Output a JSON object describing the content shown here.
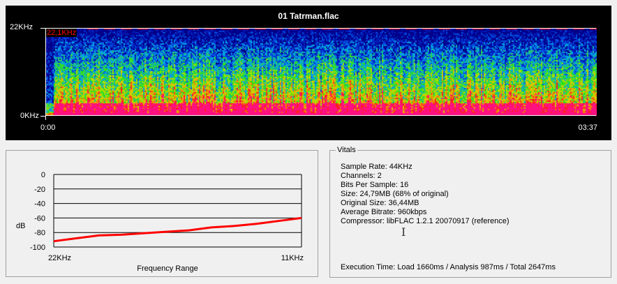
{
  "spectrogram": {
    "title": "01 Tatrman.flac",
    "y_max_label": "22KHz",
    "y_min_label": "0KHz",
    "cutoff_label": "22,1KHz",
    "time_start": "0:00",
    "time_end": "03:37",
    "colors": {
      "background": "#000000",
      "low": "#0020c0",
      "mid": "#20e020",
      "high": "#ff2020",
      "cutoff_marker": "#ff0000"
    }
  },
  "chart_data": {
    "type": "line",
    "xlabel": "Frequency Range",
    "ylabel": "dB",
    "x_tick_labels": [
      "22KHz",
      "11KHz"
    ],
    "y_ticks": [
      0,
      -20,
      -40,
      -60,
      -80,
      -100
    ],
    "ylim": [
      -100,
      0
    ],
    "xlim_khz": [
      22,
      11
    ],
    "grid": true,
    "series_color": "#ff0000",
    "x_khz": [
      22,
      21,
      20,
      19,
      18,
      17,
      16,
      15,
      14,
      13,
      12,
      11
    ],
    "values": [
      -92,
      -88,
      -84,
      -83,
      -81,
      -79,
      -77,
      -73,
      -71,
      -68,
      -64,
      -60
    ]
  },
  "vitals": {
    "legend": "Vitals",
    "lines": [
      "Sample Rate: 44KHz",
      "Channels: 2",
      "Bits Per Sample: 16",
      "Size: 24,79MB (68% of original)",
      "Original Size: 36,44MB",
      "Average Bitrate: 960kbps",
      "Compressor: libFLAC 1.2.1 20070917 (reference)"
    ],
    "execution_time": "Execution Time: Load 1660ms / Analysis 987ms / Total 2647ms"
  }
}
